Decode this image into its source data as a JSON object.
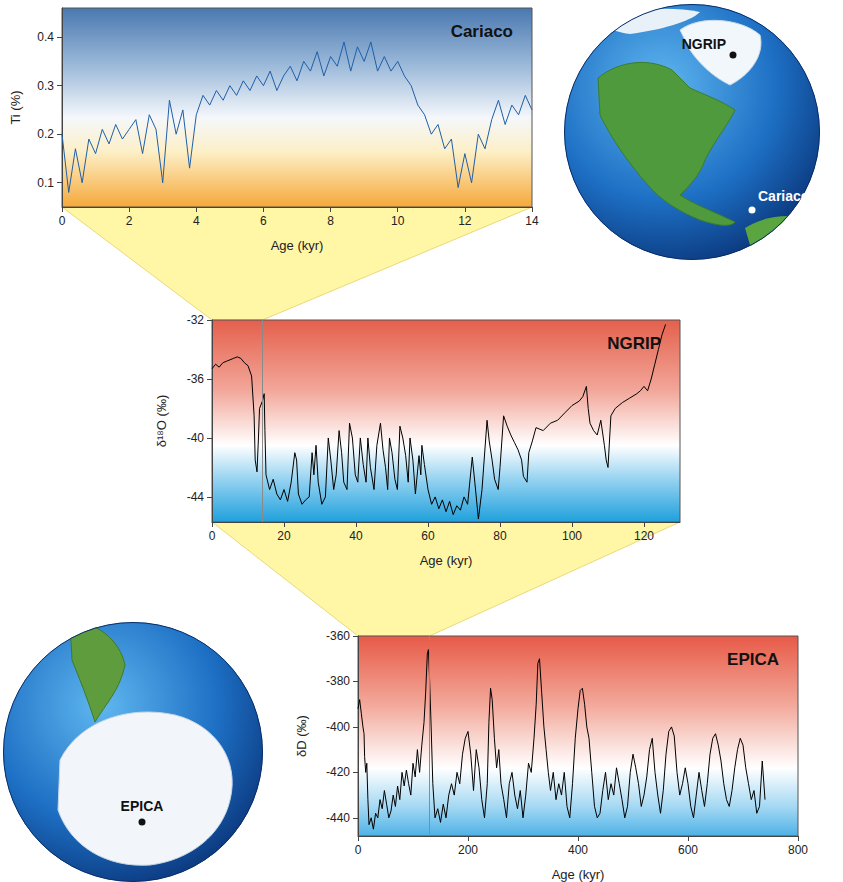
{
  "chart_data": [
    {
      "type": "line",
      "title": "Cariaco",
      "xlabel": "Age (kyr)",
      "ylabel": "Ti (%)",
      "color": "#1f5fa8",
      "grid": false,
      "xlim": [
        0,
        14
      ],
      "xticks": [
        0,
        2,
        4,
        6,
        8,
        10,
        12,
        14
      ],
      "ylim": [
        0.05,
        0.46
      ],
      "yticks": [
        0.1,
        0.2,
        0.3,
        0.4
      ],
      "x": [
        0,
        0.2,
        0.4,
        0.6,
        0.8,
        1,
        1.2,
        1.4,
        1.6,
        1.8,
        2,
        2.2,
        2.4,
        2.6,
        2.8,
        3,
        3.2,
        3.4,
        3.6,
        3.8,
        4,
        4.2,
        4.4,
        4.6,
        4.8,
        5,
        5.2,
        5.4,
        5.6,
        5.8,
        6,
        6.2,
        6.4,
        6.6,
        6.8,
        7,
        7.2,
        7.4,
        7.6,
        7.8,
        8,
        8.2,
        8.4,
        8.6,
        8.8,
        9,
        9.2,
        9.4,
        9.6,
        9.8,
        10,
        10.2,
        10.4,
        10.6,
        10.8,
        11,
        11.2,
        11.4,
        11.6,
        11.8,
        12,
        12.2,
        12.4,
        12.6,
        12.8,
        13,
        13.2,
        13.4,
        13.6,
        13.8,
        14
      ],
      "values": [
        0.2,
        0.08,
        0.17,
        0.1,
        0.19,
        0.16,
        0.21,
        0.18,
        0.22,
        0.19,
        0.21,
        0.23,
        0.16,
        0.24,
        0.21,
        0.1,
        0.27,
        0.2,
        0.25,
        0.13,
        0.24,
        0.28,
        0.26,
        0.29,
        0.27,
        0.3,
        0.28,
        0.31,
        0.29,
        0.32,
        0.3,
        0.33,
        0.29,
        0.32,
        0.34,
        0.31,
        0.35,
        0.33,
        0.37,
        0.32,
        0.36,
        0.34,
        0.39,
        0.33,
        0.38,
        0.35,
        0.39,
        0.33,
        0.36,
        0.33,
        0.35,
        0.32,
        0.3,
        0.26,
        0.24,
        0.2,
        0.22,
        0.17,
        0.19,
        0.09,
        0.16,
        0.1,
        0.2,
        0.17,
        0.23,
        0.27,
        0.22,
        0.26,
        0.24,
        0.28,
        0.25
      ]
    },
    {
      "type": "line",
      "title": "NGRIP",
      "xlabel": "Age (kyr)",
      "ylabel": "δ¹⁸O (‰)",
      "color": "#000000",
      "grid": false,
      "xlim": [
        0,
        130
      ],
      "xticks": [
        0,
        20,
        40,
        60,
        80,
        100,
        120
      ],
      "ylim": [
        -45.7,
        -32
      ],
      "yticks": [
        -32,
        -36,
        -40,
        -44
      ],
      "x": [
        0,
        1,
        2,
        3,
        4,
        5,
        6,
        7,
        8,
        9,
        10,
        11,
        11.7,
        12,
        12.5,
        12.9,
        13.2,
        14,
        14.5,
        14.7,
        15,
        16,
        17,
        18,
        19,
        20,
        21,
        22,
        23,
        23.5,
        24,
        25,
        26,
        27,
        27.8,
        28.3,
        28.9,
        29.5,
        30.5,
        31.5,
        32.3,
        33,
        33.8,
        34.5,
        35.3,
        36,
        36.6,
        37.5,
        38.2,
        39,
        39.8,
        40.5,
        41.2,
        42,
        42.8,
        43.3,
        44,
        45,
        45.8,
        46.8,
        47.5,
        48.2,
        48.8,
        49.3,
        50,
        50.8,
        51.5,
        52.2,
        53,
        53.8,
        54.5,
        55,
        55.8,
        56.5,
        57.5,
        58,
        58.3,
        59,
        60,
        61,
        62,
        63,
        64,
        65,
        66,
        67,
        68,
        69,
        70,
        71,
        72.3,
        73,
        74,
        75,
        76.4,
        77,
        77.8,
        78.5,
        79.5,
        80,
        81,
        82,
        83,
        84,
        85,
        86,
        86.5,
        87.5,
        88,
        89,
        90,
        92,
        94,
        96,
        98,
        100,
        102,
        103,
        104,
        104.5,
        105,
        106,
        107,
        108,
        109,
        109.5,
        110,
        110.8,
        112,
        114,
        116,
        118,
        119,
        120,
        121,
        122,
        123,
        124,
        125,
        126
      ],
      "values": [
        -35.3,
        -35,
        -35.2,
        -34.9,
        -34.8,
        -34.7,
        -34.6,
        -34.5,
        -34.6,
        -34.9,
        -35.1,
        -35.8,
        -38.5,
        -41.5,
        -42.3,
        -40,
        -38,
        -37.5,
        -37,
        -39.5,
        -42.5,
        -43.5,
        -42.8,
        -43.8,
        -44.2,
        -43.5,
        -44.3,
        -43,
        -41,
        -41.5,
        -43.8,
        -44.5,
        -44.2,
        -44,
        -41,
        -42.5,
        -40.5,
        -43,
        -44.5,
        -44,
        -40,
        -41.5,
        -43.5,
        -42.5,
        -39.5,
        -41,
        -43,
        -43.5,
        -39,
        -40,
        -42.5,
        -43,
        -40,
        -41.8,
        -43,
        -40,
        -42,
        -43.5,
        -40.5,
        -39,
        -40.8,
        -42,
        -43.5,
        -40,
        -41,
        -42.8,
        -43.5,
        -39.2,
        -40,
        -41.2,
        -43,
        -40,
        -41.5,
        -43.8,
        -41.2,
        -42.5,
        -40.5,
        -41.8,
        -43.5,
        -44.5,
        -44,
        -44.8,
        -44.2,
        -45,
        -44.3,
        -45.2,
        -44.6,
        -44.9,
        -44,
        -44.5,
        -41.3,
        -43,
        -45.5,
        -43.5,
        -38.8,
        -40.2,
        -41.5,
        -42.8,
        -43.5,
        -42,
        -38.5,
        -39.2,
        -39.8,
        -40.3,
        -40.8,
        -41.5,
        -42.6,
        -43,
        -41,
        -40.2,
        -39.3,
        -39.5,
        -39,
        -38.8,
        -38.3,
        -37.8,
        -37.5,
        -37.2,
        -36.5,
        -38,
        -39,
        -39.5,
        -39.8,
        -38.8,
        -40.5,
        -41.5,
        -42,
        -38.5,
        -38,
        -37.6,
        -37.3,
        -37,
        -36.8,
        -36.5,
        -36.8,
        -36,
        -35,
        -34,
        -33,
        -32.3
      ]
    },
    {
      "type": "line",
      "title": "EPICA",
      "xlabel": "Age (kyr)",
      "ylabel": "δD (‰)",
      "color": "#000000",
      "grid": false,
      "xlim": [
        0,
        800
      ],
      "xticks": [
        0,
        200,
        400,
        600,
        800
      ],
      "ylim": [
        -448,
        -360
      ],
      "yticks": [
        -360,
        -380,
        -400,
        -420,
        -440
      ],
      "x": [
        0,
        3,
        6,
        9,
        11,
        12,
        14,
        16,
        18,
        20,
        24,
        28,
        32,
        36,
        40,
        44,
        48,
        52,
        56,
        60,
        64,
        68,
        72,
        76,
        80,
        84,
        88,
        92,
        96,
        100,
        104,
        108,
        112,
        116,
        120,
        123,
        126,
        128,
        130,
        133,
        136,
        140,
        145,
        150,
        155,
        160,
        165,
        170,
        175,
        180,
        185,
        190,
        195,
        200,
        205,
        210,
        215,
        220,
        225,
        230,
        235,
        238,
        241,
        244,
        248,
        252,
        256,
        260,
        265,
        270,
        275,
        280,
        285,
        290,
        295,
        300,
        305,
        310,
        315,
        320,
        324,
        327,
        330,
        334,
        338,
        342,
        346,
        350,
        355,
        360,
        365,
        370,
        375,
        380,
        385,
        390,
        395,
        400,
        404,
        408,
        412,
        416,
        420,
        425,
        430,
        435,
        440,
        445,
        450,
        455,
        460,
        465,
        470,
        475,
        480,
        485,
        490,
        495,
        500,
        505,
        510,
        515,
        520,
        525,
        530,
        535,
        540,
        545,
        550,
        555,
        560,
        565,
        570,
        575,
        580,
        585,
        590,
        595,
        600,
        605,
        610,
        615,
        620,
        625,
        630,
        635,
        640,
        645,
        650,
        655,
        660,
        665,
        670,
        675,
        680,
        685,
        690,
        695,
        700,
        705,
        710,
        715,
        720,
        725,
        730,
        735,
        740
      ],
      "values": [
        -392,
        -388,
        -394,
        -400,
        -403,
        -413,
        -420,
        -416,
        -432,
        -443,
        -440,
        -445,
        -438,
        -440,
        -432,
        -436,
        -428,
        -434,
        -440,
        -437,
        -430,
        -435,
        -426,
        -432,
        -420,
        -426,
        -419,
        -425,
        -430,
        -416,
        -422,
        -410,
        -420,
        -408,
        -398,
        -385,
        -368,
        -366,
        -378,
        -400,
        -425,
        -440,
        -436,
        -442,
        -434,
        -440,
        -430,
        -425,
        -430,
        -420,
        -425,
        -412,
        -405,
        -402,
        -412,
        -428,
        -410,
        -418,
        -432,
        -440,
        -425,
        -398,
        -383,
        -388,
        -405,
        -418,
        -410,
        -425,
        -432,
        -440,
        -425,
        -420,
        -430,
        -436,
        -428,
        -440,
        -430,
        -416,
        -420,
        -405,
        -390,
        -372,
        -370,
        -385,
        -400,
        -410,
        -420,
        -428,
        -420,
        -432,
        -425,
        -430,
        -420,
        -435,
        -440,
        -425,
        -405,
        -392,
        -384,
        -383,
        -390,
        -400,
        -405,
        -420,
        -435,
        -440,
        -438,
        -428,
        -420,
        -432,
        -425,
        -430,
        -418,
        -425,
        -432,
        -440,
        -435,
        -420,
        -412,
        -418,
        -425,
        -435,
        -430,
        -422,
        -410,
        -405,
        -420,
        -430,
        -438,
        -428,
        -412,
        -402,
        -400,
        -404,
        -420,
        -430,
        -425,
        -418,
        -425,
        -435,
        -440,
        -430,
        -420,
        -428,
        -435,
        -425,
        -412,
        -405,
        -403,
        -408,
        -415,
        -425,
        -432,
        -435,
        -428,
        -418,
        -410,
        -405,
        -408,
        -418,
        -425,
        -432,
        -428,
        -438,
        -435,
        -415,
        -432
      ]
    }
  ]
}
